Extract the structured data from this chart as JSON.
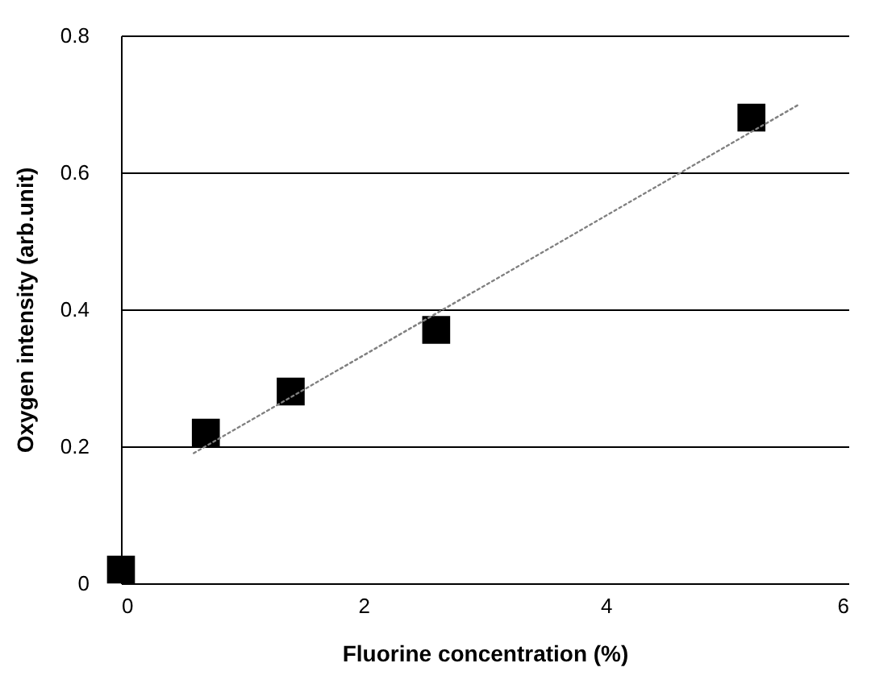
{
  "chart_data": {
    "type": "scatter",
    "xlabel": "Fluorine concentration (%)",
    "ylabel": "Oxygen intensity (arb.unit)",
    "xlim": [
      0,
      6
    ],
    "xticks": [
      0,
      2,
      4,
      6
    ],
    "ylim": [
      0,
      0.8
    ],
    "yticks": [
      0,
      0.2,
      0.4,
      0.6,
      0.8
    ],
    "grid": "y",
    "marker": "square",
    "series": [
      {
        "color": "#000000",
        "x": [
          0,
          0.7,
          1.4,
          2.6,
          5.2
        ],
        "values": [
          0.02,
          0.22,
          0.28,
          0.37,
          0.68
        ]
      },
      {
        "type": "line",
        "color": "#808080",
        "line_style": "dotted",
        "marker": "none",
        "x": [
          0.6,
          5.6
        ],
        "values": [
          0.19,
          0.7
        ]
      }
    ]
  }
}
